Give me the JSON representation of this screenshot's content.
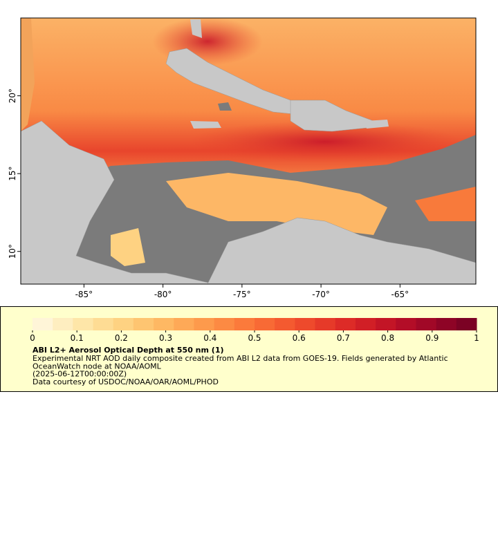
{
  "map": {
    "xlim": [
      -89,
      -60.2
    ],
    "ylim": [
      7.9,
      25
    ],
    "xticks": [
      {
        "value": -85,
        "label": "-85°"
      },
      {
        "value": -80,
        "label": "-80°"
      },
      {
        "value": -75,
        "label": "-75°"
      },
      {
        "value": -70,
        "label": "-70°"
      },
      {
        "value": -65,
        "label": "-65°"
      }
    ],
    "yticks": [
      {
        "value": 10,
        "label": "10°"
      },
      {
        "value": 15,
        "label": "15°"
      },
      {
        "value": 20,
        "label": "20°"
      }
    ]
  },
  "colorbar": {
    "range": [
      0,
      1
    ],
    "ticks": [
      0,
      0.1,
      0.2,
      0.3,
      0.4,
      0.5,
      0.6,
      0.7,
      0.8,
      0.9,
      1
    ],
    "colors": [
      "#fff5d8",
      "#feeec0",
      "#fee6a8",
      "#fedc94",
      "#fed282",
      "#fec571",
      "#feb863",
      "#fea957",
      "#fd9a4c",
      "#fc8a43",
      "#fb7a3b",
      "#f86a35",
      "#f45a30",
      "#ee4a2c",
      "#e63a29",
      "#dd2b27",
      "#d11f26",
      "#c31526",
      "#b30d27",
      "#a10827",
      "#8e0426",
      "#7b0224"
    ]
  },
  "legend": {
    "title": "ABI L2+ Aerosol Optical Depth at 550 nm (1)",
    "lines": [
      "Experimental NRT AOD daily composite created from ABI L2 data from GOES-19. Fields generated by Atlantic",
      "OceanWatch node at NOAA/AOML",
      "(2025-06-12T00:00:00Z)",
      "Data courtesy of USDOC/NOAA/OAR/AOML/PHOD"
    ]
  }
}
